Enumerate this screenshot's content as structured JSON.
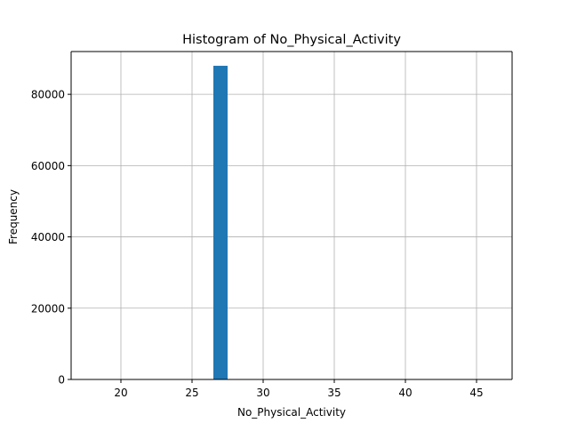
{
  "chart_data": {
    "type": "bar",
    "title": "Histogram of No_Physical_Activity",
    "xlabel": "No_Physical_Activity",
    "ylabel": "Frequency",
    "xlim": [
      16.5,
      47.5
    ],
    "ylim": [
      0,
      92000
    ],
    "xticks": [
      20,
      25,
      30,
      35,
      40,
      45
    ],
    "yticks": [
      0,
      20000,
      40000,
      60000,
      80000
    ],
    "grid": true,
    "colors": {
      "bar": "#1f77b4",
      "grid": "#b0b0b0",
      "axis": "#000000"
    },
    "bins": [
      {
        "x0": 26.5,
        "x1": 27.5,
        "count": 88000
      }
    ]
  }
}
